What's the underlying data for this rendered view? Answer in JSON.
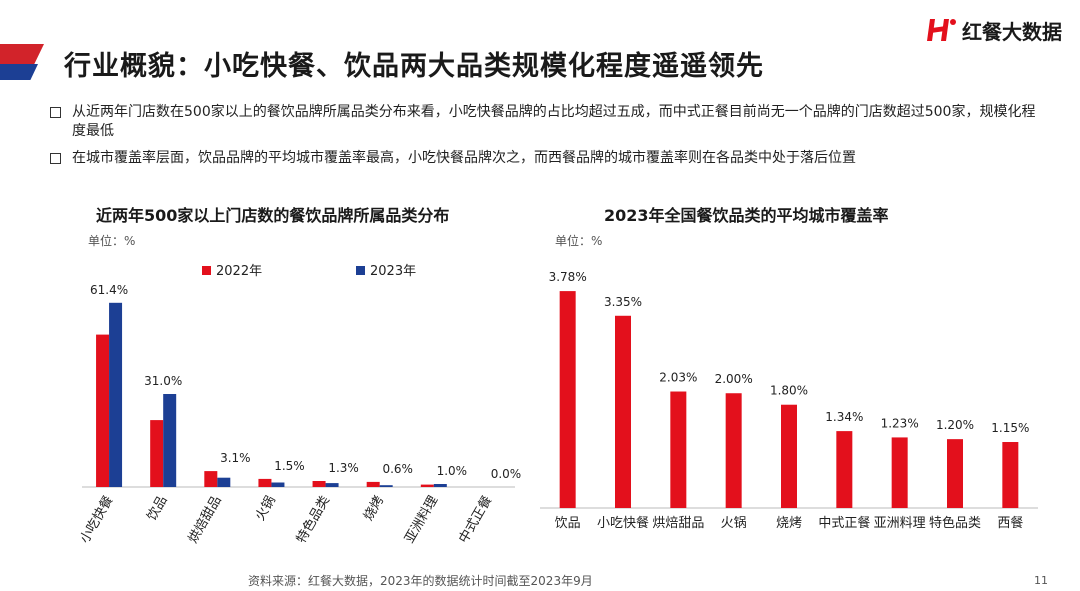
{
  "header": {
    "title": "行业概貌：小吃快餐、饮品两大品类规模化程度遥遥领先",
    "logo_text": "红餐大数据"
  },
  "bullets": [
    "从近两年门店数在500家以上的餐饮品牌所属品类分布来看，小吃快餐品牌的占比均超过五成，而中式正餐目前尚无一个品牌的门店数超过500家，规模化程度最低",
    "在城市覆盖率层面，饮品品牌的平均城市覆盖率最高，小吃快餐品牌次之，而西餐品牌的城市覆盖率则在各品类中处于落后位置"
  ],
  "colors": {
    "red": "#e3101c",
    "blue": "#1c3f94"
  },
  "chart_data": [
    {
      "type": "bar",
      "title": "近两年500家以上门店数的餐饮品牌所属品类分布",
      "unit": "单位：%",
      "categories": [
        "小吃快餐",
        "饮品",
        "烘焙甜品",
        "火锅",
        "特色品类",
        "烧烤",
        "亚洲料理",
        "中式正餐"
      ],
      "series": [
        {
          "name": "2022年",
          "values": [
            50.8,
            22.3,
            5.3,
            2.7,
            2.0,
            1.7,
            0.8,
            0.0
          ]
        },
        {
          "name": "2023年",
          "values": [
            61.4,
            31.0,
            3.1,
            1.5,
            1.3,
            0.6,
            1.0,
            0.0
          ]
        }
      ],
      "data_labels": [
        "61.4%",
        "31.0%",
        "3.1%",
        "1.5%",
        "1.3%",
        "0.6%",
        "1.0%",
        "0.0%"
      ],
      "ylim": [
        0,
        70
      ],
      "legend": "top",
      "grid": false
    },
    {
      "type": "bar",
      "title": "2023年全国餐饮品类的平均城市覆盖率",
      "unit": "单位：%",
      "categories": [
        "饮品",
        "小吃快餐",
        "烘焙甜品",
        "火锅",
        "烧烤",
        "中式正餐",
        "亚洲料理",
        "特色品类",
        "西餐"
      ],
      "values": [
        3.78,
        3.35,
        2.03,
        2.0,
        1.8,
        1.34,
        1.23,
        1.2,
        1.15
      ],
      "data_labels": [
        "3.78%",
        "3.35%",
        "2.03%",
        "2.00%",
        "1.80%",
        "1.34%",
        "1.23%",
        "1.20%",
        "1.15%"
      ],
      "ylim": [
        0,
        4.2
      ],
      "grid": false
    }
  ],
  "footer": {
    "source": "资料来源：红餐大数据，2023年的数据统计时间截至2023年9月",
    "page_number": "11"
  }
}
